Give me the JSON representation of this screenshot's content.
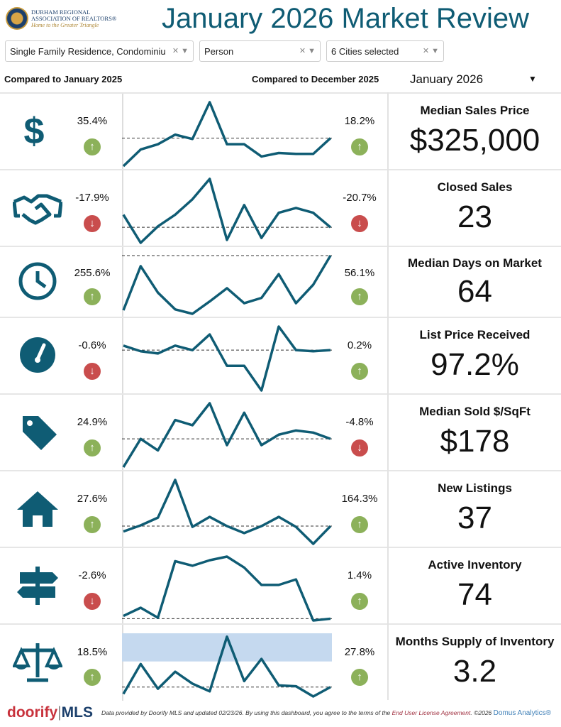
{
  "header": {
    "logo_line1": "DURHAM REGIONAL",
    "logo_line2": "ASSOCIATION OF REALTORS®",
    "logo_tagline": "Home to the Greater Triangle",
    "title": "January 2026 Market Review"
  },
  "filters": [
    {
      "value": "Single Family Residence, Condominiu"
    },
    {
      "value": "Person"
    },
    {
      "value": "6 Cities selected"
    }
  ],
  "compare_left": "Compared to January 2025",
  "compare_right": "Compared to December 2025",
  "period": "January 2026",
  "colors": {
    "accent": "#0f5c74",
    "up": "#8cb15a",
    "down": "#c94d4d",
    "band": "#c5d9ef"
  },
  "metrics": [
    {
      "label": "Median Sales Price",
      "value": "$325,000",
      "yoy": "35.4%",
      "yoy_dir": "up",
      "mom": "18.2%",
      "mom_dir": "up",
      "icon": "dollar-icon",
      "trend": [
        776,
        795,
        801,
        812,
        807,
        849,
        801,
        801,
        787,
        791,
        790,
        790,
        808
      ]
    },
    {
      "label": "Closed Sales",
      "value": "23",
      "yoy": "-17.9%",
      "yoy_dir": "down",
      "mom": "-20.7%",
      "mom_dir": "down",
      "icon": "handshake-icon",
      "trend": [
        704,
        675,
        692,
        704,
        720,
        741,
        678,
        714,
        680,
        706,
        711,
        706,
        691
      ]
    },
    {
      "label": "Median Days on Market",
      "value": "64",
      "yoy": "255.6%",
      "yoy_dir": "up",
      "mom": "56.1%",
      "mom_dir": "up",
      "icon": "clock-icon",
      "trend": [
        579,
        629,
        599,
        580,
        575,
        589,
        604,
        587,
        593,
        620,
        587,
        608,
        641
      ]
    },
    {
      "label": "List Price Received",
      "value": "97.2%",
      "yoy": "-0.6%",
      "yoy_dir": "down",
      "mom": "0.2%",
      "mom_dir": "up",
      "icon": "gauge-icon",
      "trend": [
        513,
        508,
        506,
        513,
        509,
        523,
        495,
        495,
        473,
        530,
        509,
        508,
        509
      ]
    },
    {
      "label": "Median Sold $/SqFt",
      "value": "$178",
      "yoy": "24.9%",
      "yoy_dir": "up",
      "mom": "-4.8%",
      "mom_dir": "down",
      "icon": "price-tag-icon",
      "trend": [
        369,
        396,
        385,
        414,
        409,
        430,
        390,
        421,
        390,
        400,
        404,
        402,
        396
      ]
    },
    {
      "label": "New Listings",
      "value": "37",
      "yoy": "27.6%",
      "yoy_dir": "up",
      "mom": "164.3%",
      "mom_dir": "up",
      "icon": "house-icon",
      "trend": [
        262,
        270,
        280,
        329,
        268,
        281,
        269,
        260,
        269,
        281,
        268,
        246,
        269
      ]
    },
    {
      "label": "Active Inventory",
      "value": "74",
      "yoy": "-2.6%",
      "yoy_dir": "down",
      "mom": "1.4%",
      "mom_dir": "up",
      "icon": "signpost-icon",
      "trend": [
        160,
        169,
        158,
        220,
        215,
        221,
        225,
        213,
        194,
        194,
        200,
        155,
        157
      ]
    },
    {
      "label": "Months Supply of Inventory",
      "value": "3.2",
      "yoy": "18.5%",
      "yoy_dir": "up",
      "mom": "27.8%",
      "mom_dir": "up",
      "icon": "scales-icon",
      "trend": [
        27,
        62,
        33,
        53,
        39,
        30,
        94,
        42,
        68,
        37,
        36,
        24,
        35
      ],
      "band": [
        65,
        98
      ]
    }
  ],
  "footer": {
    "brand": "doorify",
    "brand2": "MLS",
    "note": "Data provided by Doorify MLS and updated 02/23/26.  By using this dashboard, you agree to the terms of the",
    "link": "End User License Agreement",
    "copy": ".  ©2026",
    "domus": "Domus Analytics®"
  }
}
